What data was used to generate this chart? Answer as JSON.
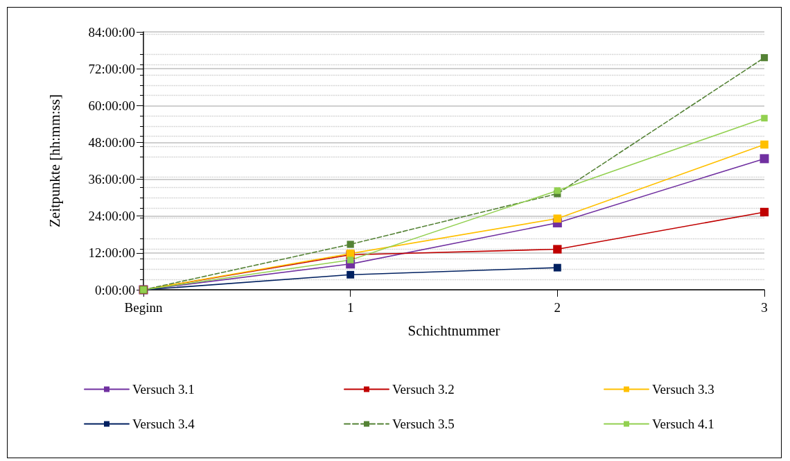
{
  "chart_data": {
    "type": "line",
    "xlabel": "Schichtnummer",
    "ylabel": "Zeitpunkte [hh:mm:ss]",
    "categories": [
      "Beginn",
      "1",
      "2",
      "3"
    ],
    "series": [
      {
        "name": "Versuch 3.1",
        "color": "#7030a0",
        "values": [
          0,
          8.4,
          21.8,
          42.7
        ]
      },
      {
        "name": "Versuch 3.2",
        "color": "#c00000",
        "values": [
          0,
          11.4,
          13.2,
          25.3
        ]
      },
      {
        "name": "Versuch 3.3",
        "color": "#ffc000",
        "values": [
          0,
          11.8,
          23.2,
          47.3
        ]
      },
      {
        "name": "Versuch 3.4",
        "color": "#002060",
        "values": [
          0,
          4.9,
          7.2,
          null
        ]
      },
      {
        "name": "Versuch 3.5",
        "color": "#548235",
        "values": [
          0,
          14.8,
          31.3,
          75.6
        ],
        "line_style": "dashed"
      },
      {
        "name": "Versuch 4.1",
        "color": "#92d050",
        "values": [
          0,
          9.7,
          32.3,
          55.9
        ]
      }
    ],
    "ylim": [
      0,
      84
    ],
    "yticks": [
      {
        "value": 0,
        "label": "0:00:00"
      },
      {
        "value": 12,
        "label": "12:00:00"
      },
      {
        "value": 24,
        "label": "24:00:00"
      },
      {
        "value": 36,
        "label": "36:00:00"
      },
      {
        "value": 48,
        "label": "48:00:00"
      },
      {
        "value": 60,
        "label": "60:00:00"
      },
      {
        "value": 72,
        "label": "72:00:00"
      },
      {
        "value": 84,
        "label": "84:00:00"
      }
    ],
    "grid": "y",
    "legend": "bottom",
    "marker": "square",
    "line_style": "solid"
  }
}
